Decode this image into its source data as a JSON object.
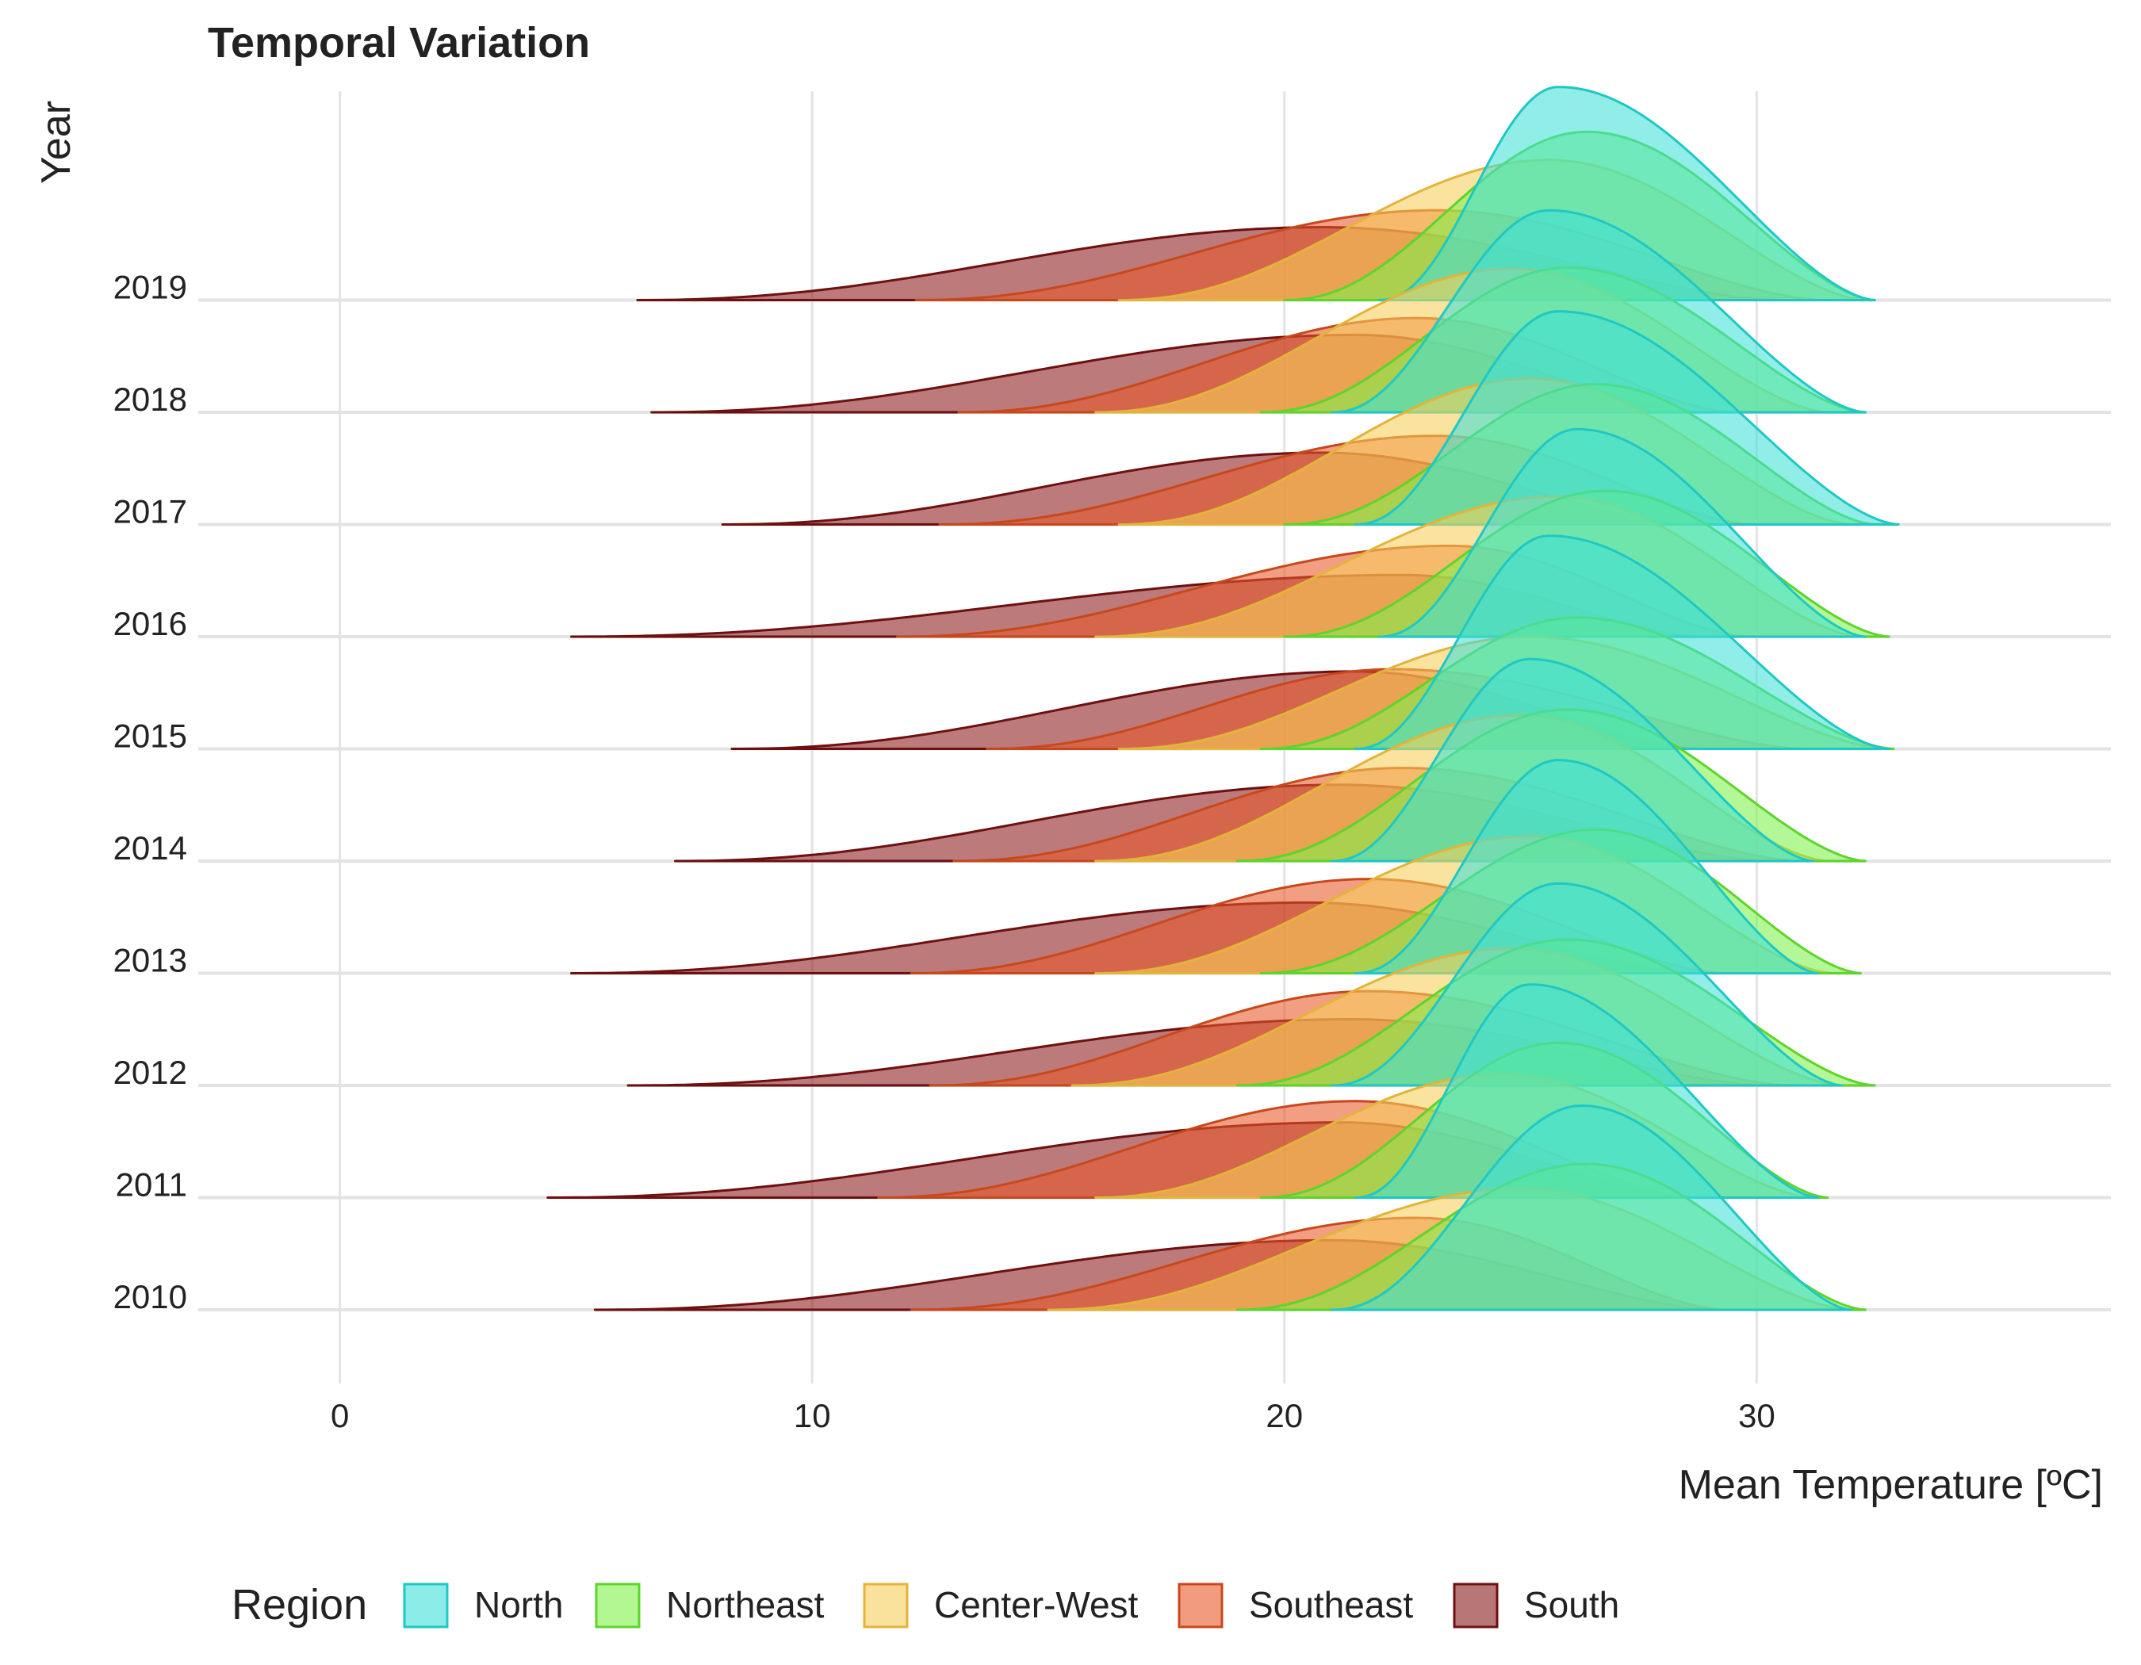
{
  "chart_data": {
    "type": "area",
    "title": "Temporal Variation",
    "xlabel": "Mean Temperature [ºC]",
    "ylabel": "Year",
    "xlim": [
      -3,
      37.5
    ],
    "x_ticks": [
      0,
      10,
      20,
      30
    ],
    "years": [
      "2010",
      "2011",
      "2012",
      "2013",
      "2014",
      "2015",
      "2016",
      "2017",
      "2018",
      "2019"
    ],
    "grid": true,
    "legend": {
      "title": "Region",
      "position": "bottom",
      "entries": [
        "North",
        "Northeast",
        "Center-West",
        "Southeast",
        "South"
      ]
    },
    "colors": {
      "North": "#40e0d8",
      "Northeast": "#7ef24a",
      "Center-West": "#f6cf5a",
      "Southeast": "#e8582a",
      "South": "#8b1a1a"
    },
    "series": [
      {
        "name": "South",
        "values": {
          "2010": {
            "min": 5.4,
            "mode": 21.0,
            "max": 29.2,
            "peak": 0.62
          },
          "2011": {
            "min": 4.4,
            "mode": 21.2,
            "max": 28.7,
            "peak": 0.67
          },
          "2012": {
            "min": 6.1,
            "mode": 21.4,
            "max": 30.2,
            "peak": 0.59
          },
          "2013": {
            "min": 4.9,
            "mode": 20.5,
            "max": 28.8,
            "peak": 0.63
          },
          "2014": {
            "min": 7.1,
            "mode": 21.2,
            "max": 30.3,
            "peak": 0.68
          },
          "2015": {
            "min": 8.3,
            "mode": 21.5,
            "max": 28.8,
            "peak": 0.69
          },
          "2016": {
            "min": 4.9,
            "mode": 22.5,
            "max": 28.8,
            "peak": 0.55
          },
          "2017": {
            "min": 8.1,
            "mode": 20.8,
            "max": 28.6,
            "peak": 0.64
          },
          "2018": {
            "min": 6.6,
            "mode": 21.5,
            "max": 28.8,
            "peak": 0.69
          },
          "2019": {
            "min": 6.3,
            "mode": 20.8,
            "max": 30.5,
            "peak": 0.65
          }
        }
      },
      {
        "name": "Southeast",
        "values": {
          "2010": {
            "min": 12.1,
            "mode": 22.8,
            "max": 29.3,
            "peak": 0.82
          },
          "2011": {
            "min": 11.4,
            "mode": 21.5,
            "max": 28.7,
            "peak": 0.86
          },
          "2012": {
            "min": 12.5,
            "mode": 21.8,
            "max": 30.7,
            "peak": 0.84
          },
          "2013": {
            "min": 12.1,
            "mode": 21.8,
            "max": 29.3,
            "peak": 0.84
          },
          "2014": {
            "min": 13.0,
            "mode": 22.5,
            "max": 30.9,
            "peak": 0.83
          },
          "2015": {
            "min": 13.7,
            "mode": 22.3,
            "max": 31.0,
            "peak": 0.71
          },
          "2016": {
            "min": 11.8,
            "mode": 23.5,
            "max": 29.8,
            "peak": 0.81
          },
          "2017": {
            "min": 12.7,
            "mode": 23.2,
            "max": 29.9,
            "peak": 0.79
          },
          "2018": {
            "min": 13.1,
            "mode": 22.8,
            "max": 29.5,
            "peak": 0.84
          },
          "2019": {
            "min": 12.2,
            "mode": 23.2,
            "max": 31.4,
            "peak": 0.8
          }
        }
      },
      {
        "name": "Center-West",
        "values": {
          "2010": {
            "min": 15.0,
            "mode": 25.0,
            "max": 32.0,
            "peak": 1.08
          },
          "2011": {
            "min": 16.0,
            "mode": 24.6,
            "max": 31.2,
            "peak": 1.1
          },
          "2012": {
            "min": 15.5,
            "mode": 24.8,
            "max": 31.8,
            "peak": 1.22
          },
          "2013": {
            "min": 16.0,
            "mode": 25.2,
            "max": 31.6,
            "peak": 1.22
          },
          "2014": {
            "min": 16.0,
            "mode": 25.0,
            "max": 31.5,
            "peak": 1.3
          },
          "2015": {
            "min": 16.5,
            "mode": 25.2,
            "max": 32.8,
            "peak": 1.0
          },
          "2016": {
            "min": 16.0,
            "mode": 25.8,
            "max": 32.2,
            "peak": 1.25
          },
          "2017": {
            "min": 16.5,
            "mode": 25.2,
            "max": 32.0,
            "peak": 1.3
          },
          "2018": {
            "min": 16.0,
            "mode": 24.8,
            "max": 31.5,
            "peak": 1.28
          },
          "2019": {
            "min": 16.5,
            "mode": 25.6,
            "max": 32.3,
            "peak": 1.25
          }
        }
      },
      {
        "name": "Northeast",
        "values": {
          "2010": {
            "min": 19.0,
            "mode": 26.4,
            "max": 32.3,
            "peak": 1.3
          },
          "2011": {
            "min": 19.5,
            "mode": 25.8,
            "max": 31.5,
            "peak": 1.38
          },
          "2012": {
            "min": 19.0,
            "mode": 26.0,
            "max": 32.5,
            "peak": 1.3
          },
          "2013": {
            "min": 19.5,
            "mode": 26.6,
            "max": 32.2,
            "peak": 1.28
          },
          "2014": {
            "min": 19.0,
            "mode": 26.0,
            "max": 32.3,
            "peak": 1.35
          },
          "2015": {
            "min": 19.5,
            "mode": 26.2,
            "max": 32.9,
            "peak": 1.17
          },
          "2016": {
            "min": 20.0,
            "mode": 26.8,
            "max": 32.8,
            "peak": 1.3
          },
          "2017": {
            "min": 20.0,
            "mode": 26.6,
            "max": 32.5,
            "peak": 1.25
          },
          "2018": {
            "min": 19.5,
            "mode": 26.0,
            "max": 32.3,
            "peak": 1.29
          },
          "2019": {
            "min": 20.0,
            "mode": 26.4,
            "max": 32.5,
            "peak": 1.5
          }
        }
      },
      {
        "name": "North",
        "values": {
          "2010": {
            "min": 21.0,
            "mode": 26.3,
            "max": 32.0,
            "peak": 1.82
          },
          "2011": {
            "min": 21.5,
            "mode": 25.2,
            "max": 31.3,
            "peak": 1.9
          },
          "2012": {
            "min": 21.0,
            "mode": 25.8,
            "max": 31.8,
            "peak": 1.8
          },
          "2013": {
            "min": 21.5,
            "mode": 25.8,
            "max": 31.3,
            "peak": 1.9
          },
          "2014": {
            "min": 21.0,
            "mode": 25.2,
            "max": 31.2,
            "peak": 1.8
          },
          "2015": {
            "min": 21.5,
            "mode": 25.6,
            "max": 32.8,
            "peak": 1.9
          },
          "2016": {
            "min": 22.0,
            "mode": 26.2,
            "max": 32.3,
            "peak": 1.85
          },
          "2017": {
            "min": 21.5,
            "mode": 25.8,
            "max": 33.0,
            "peak": 1.9
          },
          "2018": {
            "min": 21.0,
            "mode": 25.6,
            "max": 32.3,
            "peak": 1.8
          },
          "2019": {
            "min": 22.0,
            "mode": 25.8,
            "max": 32.5,
            "peak": 1.9
          }
        }
      }
    ]
  }
}
